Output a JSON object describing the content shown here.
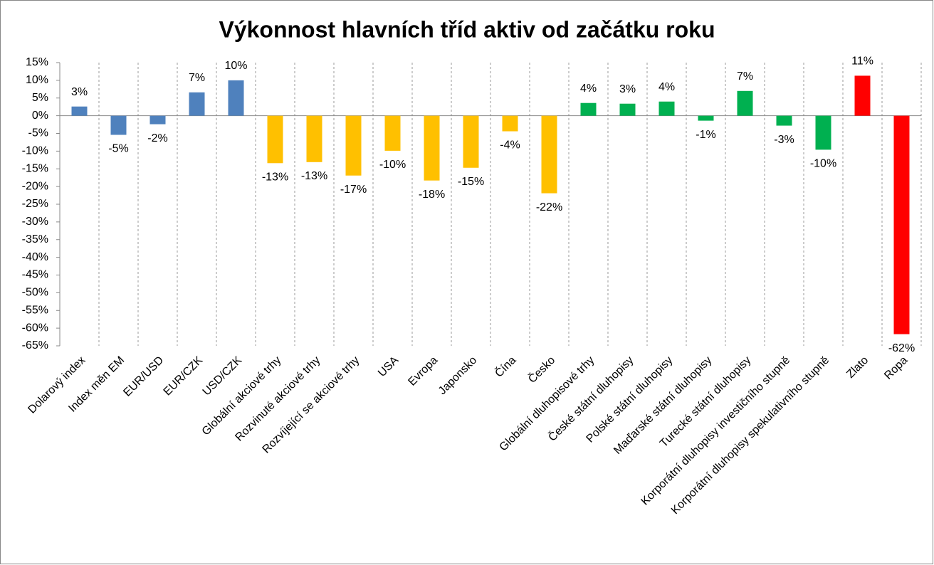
{
  "chart_data": {
    "type": "bar",
    "title": "Výkonnost hlavních tříd aktiv od začátku roku",
    "categories": [
      "Dolarový index",
      "Index měn EM",
      "EUR/USD",
      "EUR/CZK",
      "USD/CZK",
      "Globální akciové trhy",
      "Rozvinuté akciové trhy",
      "Rozvíjející se akciové trhy",
      "USA",
      "Evropa",
      "Japonsko",
      "Čína",
      "Česko",
      "Globální dluhopisové trhy",
      "České státní dluhopisy",
      "Polské státní dluhopisy",
      "Maďarské státní dluhopisy",
      "Turecké státní dluhopisy",
      "Korporátní dluhopisy investičního stupně",
      "Korporátní dluhopisy spekulativního stupně",
      "Zlato",
      "Ropa"
    ],
    "values": [
      2.6,
      -5.4,
      -2.4,
      6.6,
      10.0,
      -13.4,
      -13.1,
      -16.9,
      -9.9,
      -18.3,
      -14.7,
      -4.4,
      -21.9,
      3.6,
      3.4,
      4.0,
      -1.4,
      7.0,
      -2.8,
      -9.6,
      11.3,
      -61.7
    ],
    "value_labels": [
      "3%",
      "-5%",
      "-2%",
      "7%",
      "10%",
      "-13%",
      "-13%",
      "-17%",
      "-10%",
      "-18%",
      "-15%",
      "-4%",
      "-22%",
      "4%",
      "3%",
      "4%",
      "-1%",
      "7%",
      "-3%",
      "-10%",
      "11%",
      "-62%"
    ],
    "colors": [
      "#4f81bd",
      "#4f81bd",
      "#4f81bd",
      "#4f81bd",
      "#4f81bd",
      "#ffc000",
      "#ffc000",
      "#ffc000",
      "#ffc000",
      "#ffc000",
      "#ffc000",
      "#ffc000",
      "#ffc000",
      "#00b050",
      "#00b050",
      "#00b050",
      "#00b050",
      "#00b050",
      "#00b050",
      "#00b050",
      "#ff0000",
      "#ff0000"
    ],
    "ylim": [
      -65,
      15
    ],
    "yticks": [
      {
        "value": 15,
        "label": "15%"
      },
      {
        "value": 10,
        "label": "10%"
      },
      {
        "value": 5,
        "label": "5%"
      },
      {
        "value": 0,
        "label": "0%"
      },
      {
        "value": -5,
        "label": "-5%"
      },
      {
        "value": -10,
        "label": "-10%"
      },
      {
        "value": -15,
        "label": "-15%"
      },
      {
        "value": -20,
        "label": "-20%"
      },
      {
        "value": -25,
        "label": "-25%"
      },
      {
        "value": -30,
        "label": "-30%"
      },
      {
        "value": -35,
        "label": "-35%"
      },
      {
        "value": -40,
        "label": "-40%"
      },
      {
        "value": -45,
        "label": "-45%"
      },
      {
        "value": -50,
        "label": "-50%"
      },
      {
        "value": -55,
        "label": "-55%"
      },
      {
        "value": -60,
        "label": "-60%"
      },
      {
        "value": -65,
        "label": "-65%"
      }
    ],
    "grid": true
  }
}
